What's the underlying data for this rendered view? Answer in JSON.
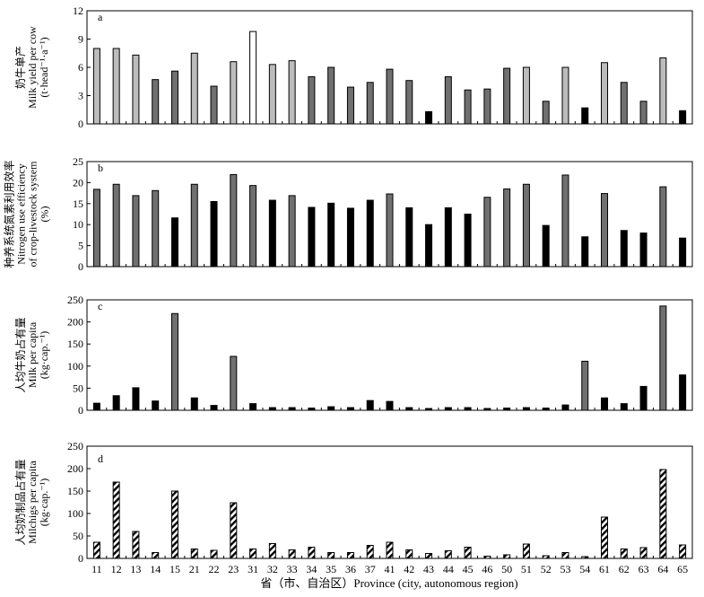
{
  "chart_data": {
    "type": "bar",
    "categories": [
      "11",
      "12",
      "13",
      "14",
      "15",
      "21",
      "22",
      "23",
      "31",
      "32",
      "33",
      "34",
      "35",
      "36",
      "37",
      "41",
      "42",
      "43",
      "44",
      "45",
      "46",
      "50",
      "51",
      "52",
      "53",
      "54",
      "61",
      "62",
      "63",
      "64",
      "65"
    ],
    "xlabel": "省（市、自治区）Province (city, autonomous region)",
    "colors": {
      "white": "#ffffff",
      "light": "#bcbcbc",
      "gray": "#707070",
      "black": "#000000"
    },
    "panels": [
      {
        "label": "a",
        "ylabel": [
          "奶牛单产",
          "Milk yield per cow",
          "(t·head⁻¹·a⁻¹)"
        ],
        "ylim": [
          0,
          12
        ],
        "yticks": [
          0,
          3,
          6,
          9,
          12
        ],
        "values": [
          8.0,
          8.0,
          7.3,
          4.7,
          5.6,
          7.5,
          4.0,
          6.6,
          9.8,
          6.3,
          6.7,
          5.0,
          6.0,
          3.9,
          4.4,
          5.8,
          4.6,
          1.3,
          5.0,
          3.6,
          3.7,
          5.9,
          6.0,
          2.4,
          6.0,
          1.7,
          6.5,
          4.4,
          2.4,
          7.0,
          1.4
        ],
        "fills": [
          "light",
          "light",
          "light",
          "gray",
          "gray",
          "light",
          "gray",
          "light",
          "white",
          "light",
          "light",
          "gray",
          "gray",
          "gray",
          "gray",
          "gray",
          "gray",
          "black",
          "gray",
          "gray",
          "gray",
          "gray",
          "light",
          "gray",
          "light",
          "black",
          "light",
          "gray",
          "gray",
          "light",
          "black"
        ]
      },
      {
        "label": "b",
        "ylabel": [
          "种养系统氮素利用效率",
          "Nitrogen use efficiency",
          "of crop-livestock system",
          "(%)"
        ],
        "ylim": [
          0,
          25
        ],
        "yticks": [
          0,
          5,
          10,
          15,
          20,
          25
        ],
        "values": [
          18.4,
          19.6,
          16.9,
          18.1,
          11.6,
          19.6,
          15.5,
          21.9,
          19.3,
          15.8,
          16.9,
          14.1,
          15.1,
          13.9,
          15.8,
          17.3,
          14.0,
          10.0,
          14.0,
          12.5,
          16.5,
          18.5,
          19.6,
          9.8,
          21.8,
          7.1,
          17.4,
          8.6,
          8.0,
          19.0,
          6.8
        ],
        "fills": [
          "gray",
          "gray",
          "gray",
          "gray",
          "black",
          "gray",
          "black",
          "gray",
          "gray",
          "black",
          "gray",
          "black",
          "black",
          "black",
          "black",
          "gray",
          "black",
          "black",
          "black",
          "black",
          "gray",
          "gray",
          "gray",
          "black",
          "gray",
          "black",
          "gray",
          "black",
          "black",
          "gray",
          "black"
        ]
      },
      {
        "label": "c",
        "ylabel": [
          "人均牛奶占有量",
          "Milk per capita",
          "(kg·cap.⁻¹)"
        ],
        "ylim": [
          0,
          250
        ],
        "yticks": [
          0,
          50,
          100,
          150,
          200,
          250
        ],
        "values": [
          16,
          33,
          51,
          21,
          219,
          28,
          11,
          122,
          15,
          6,
          6,
          5,
          8,
          6,
          22,
          20,
          6,
          4,
          6,
          6,
          4,
          5,
          6,
          5,
          12,
          111,
          28,
          15,
          54,
          236,
          80
        ],
        "fills": [
          "black",
          "black",
          "black",
          "black",
          "gray",
          "black",
          "black",
          "gray",
          "black",
          "black",
          "black",
          "black",
          "black",
          "black",
          "black",
          "black",
          "black",
          "black",
          "black",
          "black",
          "black",
          "black",
          "black",
          "black",
          "black",
          "gray",
          "black",
          "black",
          "black",
          "gray",
          "black"
        ]
      },
      {
        "label": "d",
        "ylabel": [
          "人均奶制品占有量",
          "Milchigs per capita",
          "(kg·cap.⁻¹)"
        ],
        "ylim": [
          0,
          250
        ],
        "yticks": [
          0,
          50,
          100,
          150,
          200,
          250
        ],
        "values": [
          36,
          170,
          60,
          13,
          150,
          21,
          18,
          124,
          21,
          33,
          19,
          25,
          13,
          13,
          29,
          36,
          19,
          11,
          17,
          25,
          5,
          8,
          32,
          6,
          13,
          4,
          92,
          21,
          24,
          198,
          30
        ],
        "fills": [
          "hatch",
          "hatch",
          "hatch",
          "hatch",
          "hatch",
          "hatch",
          "hatch",
          "hatch",
          "hatch",
          "hatch",
          "hatch",
          "hatch",
          "hatch",
          "hatch",
          "hatch",
          "hatch",
          "hatch",
          "hatch",
          "hatch",
          "hatch",
          "hatch",
          "hatch",
          "hatch",
          "hatch",
          "hatch",
          "hatch",
          "hatch",
          "hatch",
          "hatch",
          "hatch",
          "hatch"
        ]
      }
    ]
  }
}
